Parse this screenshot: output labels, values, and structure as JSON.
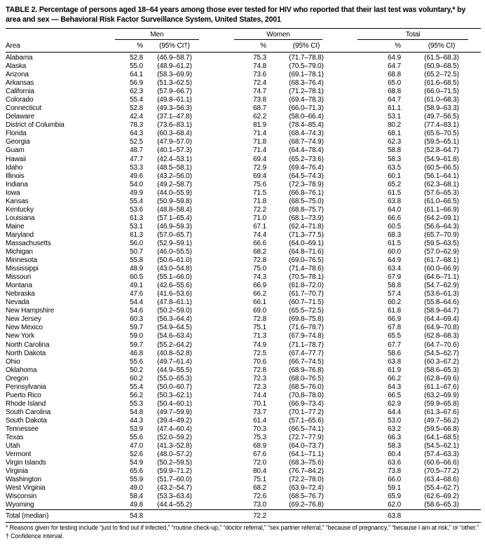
{
  "table": {
    "title": "TABLE 2. Percentage of persons aged 18–64 years among those ever tested for HIV who reported that their last test was voluntary,* by area and sex — Behavioral Risk Factor Surveillance System, United States, 2001",
    "area_header": "Area",
    "col_groups": {
      "men": "Men",
      "women": "Women",
      "total": "Total"
    },
    "subheaders": {
      "men_pct": "%",
      "men_ci": "(95% CI†)",
      "women_pct": "%",
      "women_ci": "(95% CI)",
      "total_pct": "%",
      "total_ci": "(95% CI)"
    },
    "rows": [
      [
        "Alabama",
        "52.8",
        "(46.9–58.7)",
        "75.3",
        "(71.7–78.8)",
        "64.9",
        "(61.5–68.3)"
      ],
      [
        "Alaska",
        "55.0",
        "(48.9–61.2)",
        "74.8",
        "(70.5–79.0)",
        "64.7",
        "(60.9–68.5)"
      ],
      [
        "Arizona",
        "64.1",
        "(58.3–69.9)",
        "73.6",
        "(69.1–78.1)",
        "68.8",
        "(65.2–72.5)"
      ],
      [
        "Arkansas",
        "56.9",
        "(51.3–62.5)",
        "72.4",
        "(68.3–76.4)",
        "65.0",
        "(61.6–68.5)"
      ],
      [
        "California",
        "62.3",
        "(57.9–66.7)",
        "74.7",
        "(71.2–78.1)",
        "68.8",
        "(66.0–71.5)"
      ],
      [
        "Colorado",
        "55.4",
        "(49.8–61.1)",
        "73.8",
        "(69.4–78.3)",
        "64.7",
        "(61.0–68.3)"
      ],
      [
        "Connecticut",
        "52.8",
        "(49.3–56.3)",
        "68.7",
        "(66.0–71.3)",
        "61.1",
        "(58.9–63.3)"
      ],
      [
        "Delaware",
        "42.4",
        "(37.1–47.8)",
        "62.2",
        "(58.0–66.4)",
        "53.1",
        "(49.7–56.5)"
      ],
      [
        "District of Columbia",
        "78.3",
        "(73.6–83.1)",
        "81.9",
        "(78.4–85.4)",
        "80.2",
        "(77.4–83.1)"
      ],
      [
        "Florida",
        "64.3",
        "(60.3–68.4)",
        "71.4",
        "(68.4–74.3)",
        "68.1",
        "(65.6–70.5)"
      ],
      [
        "Georgia",
        "52.5",
        "(47.9–57.0)",
        "71.8",
        "(68.7–74.9)",
        "62.3",
        "(59.5–65.1)"
      ],
      [
        "Guam",
        "48.7",
        "(40.1–57.3)",
        "71.4",
        "(64.4–78.4)",
        "58.8",
        "(52.8–64.7)"
      ],
      [
        "Hawaii",
        "47.7",
        "(42.4–53.1)",
        "69.4",
        "(65.2–73.6)",
        "58.3",
        "(54.9–61.8)"
      ],
      [
        "Idaho",
        "53.3",
        "(48.5–58.1)",
        "72.9",
        "(69.4–76.4)",
        "63.5",
        "(60.5–66.5)"
      ],
      [
        "Illinois",
        "49.6",
        "(43.2–56.0)",
        "69.4",
        "(64.5–74.3)",
        "60.1",
        "(56.1–64.1)"
      ],
      [
        "Indiana",
        "54.0",
        "(49.2–58.7)",
        "75.6",
        "(72.3–78.9)",
        "65.2",
        "(62.3–68.1)"
      ],
      [
        "Iowa",
        "49.9",
        "(44.0–55.9)",
        "71.5",
        "(66.8–76.1)",
        "61.5",
        "(57.6–65.3)"
      ],
      [
        "Kansas",
        "55.4",
        "(50.9–59.8)",
        "71.8",
        "(68.5–75.0)",
        "63.8",
        "(61.0–66.5)"
      ],
      [
        "Kentucky",
        "53.6",
        "(48.8–58.4)",
        "72.2",
        "(68.8–75.7)",
        "64.0",
        "(61.1–66.9)"
      ],
      [
        "Louisiana",
        "61.3",
        "(57.1–65.4)",
        "71.0",
        "(68.1–73.9)",
        "66.6",
        "(64.2–69.1)"
      ],
      [
        "Maine",
        "53.1",
        "(46.9–59.3)",
        "67.1",
        "(62.4–71.8)",
        "60.5",
        "(56.6–64.3)"
      ],
      [
        "Maryland",
        "61.3",
        "(57.0–65.7)",
        "74.4",
        "(71.3–77.5)",
        "68.3",
        "(65.7–70.9)"
      ],
      [
        "Massachusetts",
        "56.0",
        "(52.9–59.1)",
        "66.6",
        "(64.0–69.1)",
        "61.5",
        "(59.5–63.5)"
      ],
      [
        "Michigan",
        "50.7",
        "(46.0–55.5)",
        "68.2",
        "(64.8–71.6)",
        "60.0",
        "(57.0–62.9)"
      ],
      [
        "Minnesota",
        "55.8",
        "(50.6–61.0)",
        "72.8",
        "(69.0–76.5)",
        "64.9",
        "(61.7–68.1)"
      ],
      [
        "Mississippi",
        "48.9",
        "(43.0–54.8)",
        "75.0",
        "(71.4–78.6)",
        "63.4",
        "(60.0–66.9)"
      ],
      [
        "Missouri",
        "60.5",
        "(55.1–66.0)",
        "74.3",
        "(70.5–78.1)",
        "67.9",
        "(64.6–71.1)"
      ],
      [
        "Montana",
        "49.1",
        "(42.6–55.6)",
        "66.9",
        "(61.8–72.0)",
        "58.8",
        "(54.7–62.9)"
      ],
      [
        "Nebraska",
        "47.6",
        "(41.6–53.6)",
        "66.2",
        "(61.7–70.7)",
        "57.4",
        "(53.6–61.3)"
      ],
      [
        "Nevada",
        "54.4",
        "(47.8–61.1)",
        "66.1",
        "(60.7–71.5)",
        "60.2",
        "(55.8–64.6)"
      ],
      [
        "New Hampshire",
        "54.6",
        "(50.2–59.0)",
        "69.0",
        "(65.5–72.5)",
        "61.8",
        "(58.9–64.7)"
      ],
      [
        "New Jersey",
        "60.3",
        "(56.3–64.4)",
        "72.8",
        "(69.8–75.8)",
        "66.9",
        "(64.4–69.4)"
      ],
      [
        "New Mexico",
        "59.7",
        "(54.9–64.5)",
        "75.1",
        "(71.6–78.7)",
        "67.8",
        "(64.9–70.8)"
      ],
      [
        "New York",
        "59.0",
        "(54.6–63.4)",
        "71.3",
        "(67.9–74.8)",
        "65.5",
        "(62.8–68.3)"
      ],
      [
        "North Carolina",
        "59.7",
        "(55.2–64.2)",
        "74.9",
        "(71.1–78.7)",
        "67.7",
        "(64.7–70.6)"
      ],
      [
        "North Dakota",
        "46.8",
        "(40.8–52.8)",
        "72.5",
        "(67.4–77.7)",
        "58.6",
        "(54.5–62.7)"
      ],
      [
        "Ohio",
        "55.6",
        "(49.7–61.4)",
        "70.6",
        "(66.7–74.5)",
        "63.8",
        "(60.3–67.2)"
      ],
      [
        "Oklahoma",
        "50.2",
        "(44.9–55.5)",
        "72.8",
        "(68.9–76.8)",
        "61.9",
        "(58.6–65.3)"
      ],
      [
        "Oregon",
        "60.2",
        "(55.0–65.3)",
        "72.3",
        "(68.0–76.5)",
        "66.2",
        "(62.8–69.6)"
      ],
      [
        "Pennsylvania",
        "55.4",
        "(50.0–60.7)",
        "72.3",
        "(68.5–76.0)",
        "64.3",
        "(61.1–67.6)"
      ],
      [
        "Puerto Rico",
        "56.2",
        "(50.3–62.1)",
        "74.4",
        "(70.8–78.0)",
        "66.5",
        "(63.2–69.9)"
      ],
      [
        "Rhode Island",
        "55.3",
        "(50.4–60.1)",
        "70.1",
        "(66.9–73.4)",
        "62.9",
        "(59.9–65.8)"
      ],
      [
        "South Carolina",
        "54.8",
        "(49.7–59.9)",
        "73.7",
        "(70.1–77.2)",
        "64.4",
        "(61.3–67.6)"
      ],
      [
        "South Dakota",
        "44.3",
        "(39.4–49.2)",
        "61.4",
        "(57.1–65.6)",
        "53.0",
        "(49.7–56.2)"
      ],
      [
        "Tennessee",
        "53.9",
        "(47.4–60.4)",
        "70.3",
        "(66.5–74.1)",
        "63.2",
        "(59.5–66.8)"
      ],
      [
        "Texas",
        "55.6",
        "(52.0–59.2)",
        "75.3",
        "(72.7–77.9)",
        "66.3",
        "(64.1–68.5)"
      ],
      [
        "Utah",
        "47.0",
        "(41.3–52.8)",
        "68.9",
        "(64.0–73.7)",
        "58.3",
        "(54.5–62.1)"
      ],
      [
        "Vermont",
        "52.6",
        "(48.0–57.2)",
        "67.6",
        "(64.1–71.1)",
        "60.4",
        "(57.4–63.3)"
      ],
      [
        "Virgin Islands",
        "54.9",
        "(50.2–59.5)",
        "72.0",
        "(68.3–75.6)",
        "63.6",
        "(60.6–66.6)"
      ],
      [
        "Virginia",
        "65.6",
        "(59.9–71.2)",
        "80.4",
        "(76.7–84.2)",
        "73.8",
        "(70.5–77.2)"
      ],
      [
        "Washington",
        "55.9",
        "(51.7–60.0)",
        "75.1",
        "(72.2–78.0)",
        "66.0",
        "(63.4–68.6)"
      ],
      [
        "West Virginia",
        "49.0",
        "(43.2–54.7)",
        "68.2",
        "(63.9–72.4)",
        "59.1",
        "(55.4–62.7)"
      ],
      [
        "Wisconsin",
        "58.4",
        "(53.3–63.4)",
        "72.6",
        "(68.5–76.7)",
        "65.9",
        "(62.6–69.2)"
      ],
      [
        "Wyoming",
        "49.8",
        "(44.4–55.2)",
        "73.0",
        "(69.2–76.8)",
        "62.0",
        "(58.6–65.3)"
      ]
    ],
    "total_row": [
      "Total (median)",
      "54.8",
      "",
      "72.2",
      "",
      "63.8",
      ""
    ],
    "footnotes": [
      "* Reasons given for testing include “just to find out if infected,” “routine check-up,” “doctor referral,” “sex partner referral,” “because of pregnancy,” “because I am at risk,” or “other.”",
      "† Confidence interval."
    ]
  }
}
